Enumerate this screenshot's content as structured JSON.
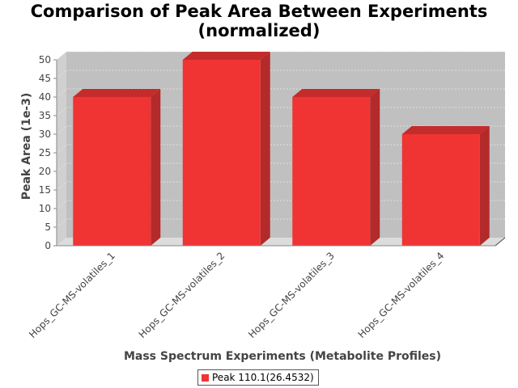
{
  "colors": {
    "plot_background": "#c0c0c0",
    "wall_side": "#d0d0d0",
    "floor": "#dcdcdc",
    "bar_front": "#f03434",
    "bar_top": "#c42c2c",
    "bar_side": "#b32a2a",
    "gridline": "#e8e8e8"
  },
  "chart_data": {
    "type": "bar",
    "title_line1": "Comparison of Peak Area Between Experiments",
    "title_line2": "(normalized)",
    "xlabel": "Mass Spectrum Experiments (Metabolite Profiles)",
    "ylabel": "Peak Area (1e-3)",
    "ylim": [
      0,
      50
    ],
    "yticks": [
      0,
      5,
      10,
      15,
      20,
      25,
      30,
      35,
      40,
      45,
      50
    ],
    "grid": true,
    "legend_position": "bottom",
    "categories": [
      "Hops_GC-MS-volatiles_1",
      "Hops_GC-MS-volatiles_2",
      "Hops_GC-MS-volatiles_3",
      "Hops_GC-MS-volatiles_4"
    ],
    "series": [
      {
        "name": "Peak 110.1(26.4532)",
        "values": [
          40,
          50,
          40,
          30
        ]
      }
    ]
  }
}
